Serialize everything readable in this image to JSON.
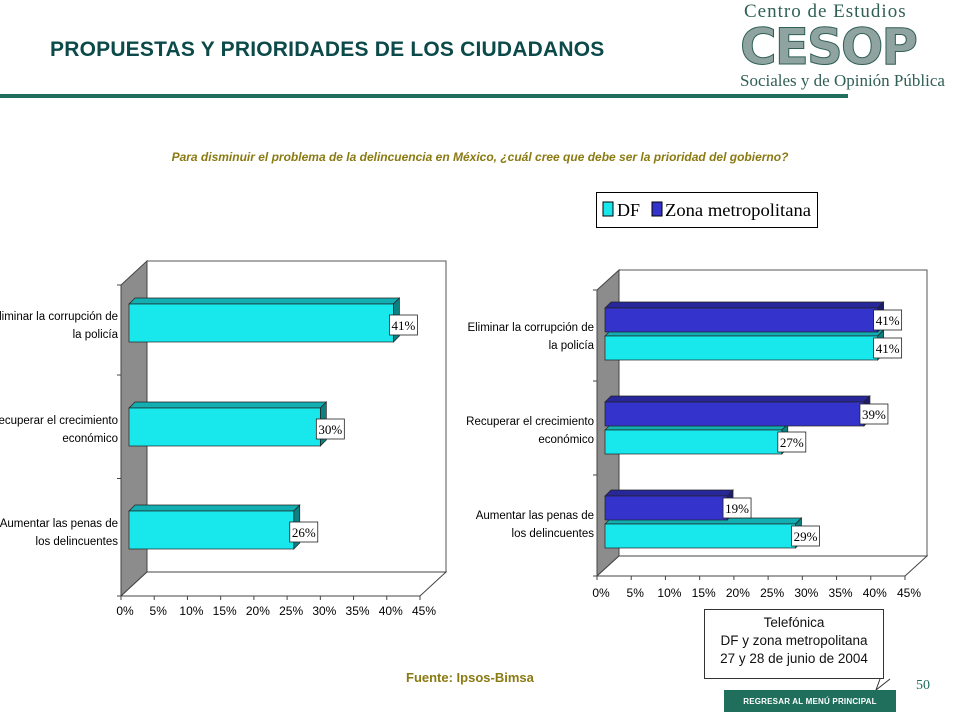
{
  "header": {
    "title": "PROPUESTAS Y PRIORIDADES DE LOS CIUDADANOS",
    "logo": {
      "line1": "Centro de Estudios",
      "acronym": "CESOP",
      "line2": "Sociales y de Opinión Pública"
    }
  },
  "question": "Para disminuir el problema de la delincuencia en México, ¿cuál cree que debe ser la prioridad del gobierno?",
  "colors": {
    "df": "#18e8ec",
    "zona": "#3434cc",
    "brand": "#1f6f5c",
    "question": "#8a7a12"
  },
  "chart_data": [
    {
      "type": "bar",
      "orientation": "horizontal",
      "categories": [
        "Eliminar la corrupción de la policía",
        "Recuperar el crecimiento económico",
        "Aumentar las penas de los delincuentes"
      ],
      "category_lines": [
        [
          "Eliminar la corrupción de",
          "la policía"
        ],
        [
          "Recuperar el crecimiento",
          "económico"
        ],
        [
          "Aumentar las penas de",
          "los delincuentes"
        ]
      ],
      "series": [
        {
          "values": [
            41,
            30,
            26
          ],
          "labels": [
            "41%",
            "30%",
            "26%"
          ]
        }
      ],
      "xlim": [
        0,
        45
      ],
      "xticks": [
        "0%",
        "5%",
        "10%",
        "15%",
        "20%",
        "25%",
        "30%",
        "35%",
        "40%",
        "45%"
      ]
    },
    {
      "type": "bar",
      "orientation": "horizontal",
      "categories": [
        "Eliminar la corrupción de la policía",
        "Recuperar el crecimiento económico",
        "Aumentar las penas de los delincuentes"
      ],
      "category_lines": [
        [
          "Eliminar la corrupción de",
          "la policía"
        ],
        [
          "Recuperar el crecimiento",
          "económico"
        ],
        [
          "Aumentar las penas de",
          "los delincuentes"
        ]
      ],
      "series": [
        {
          "name": "DF",
          "values": [
            41,
            27,
            29
          ],
          "labels": [
            "41%",
            "27%",
            "29%"
          ]
        },
        {
          "name": "Zona metropolitana",
          "values": [
            41,
            39,
            19
          ],
          "labels": [
            "41%",
            "39%",
            "19%"
          ]
        }
      ],
      "xlim": [
        0,
        45
      ],
      "xticks": [
        "0%",
        "5%",
        "10%",
        "15%",
        "20%",
        "25%",
        "30%",
        "35%",
        "40%",
        "45%"
      ],
      "legend": "top"
    }
  ],
  "legend": {
    "df": "DF",
    "zona": "Zona metropolitana"
  },
  "source": "Fuente: Ipsos-Bimsa",
  "callout": {
    "line1": "Telefónica",
    "line2": "DF y zona metropolitana",
    "line3": "27 y 28 de junio de 2004"
  },
  "menu_button": "REGRESAR AL MENÚ PRINCIPAL",
  "page_number": "50"
}
